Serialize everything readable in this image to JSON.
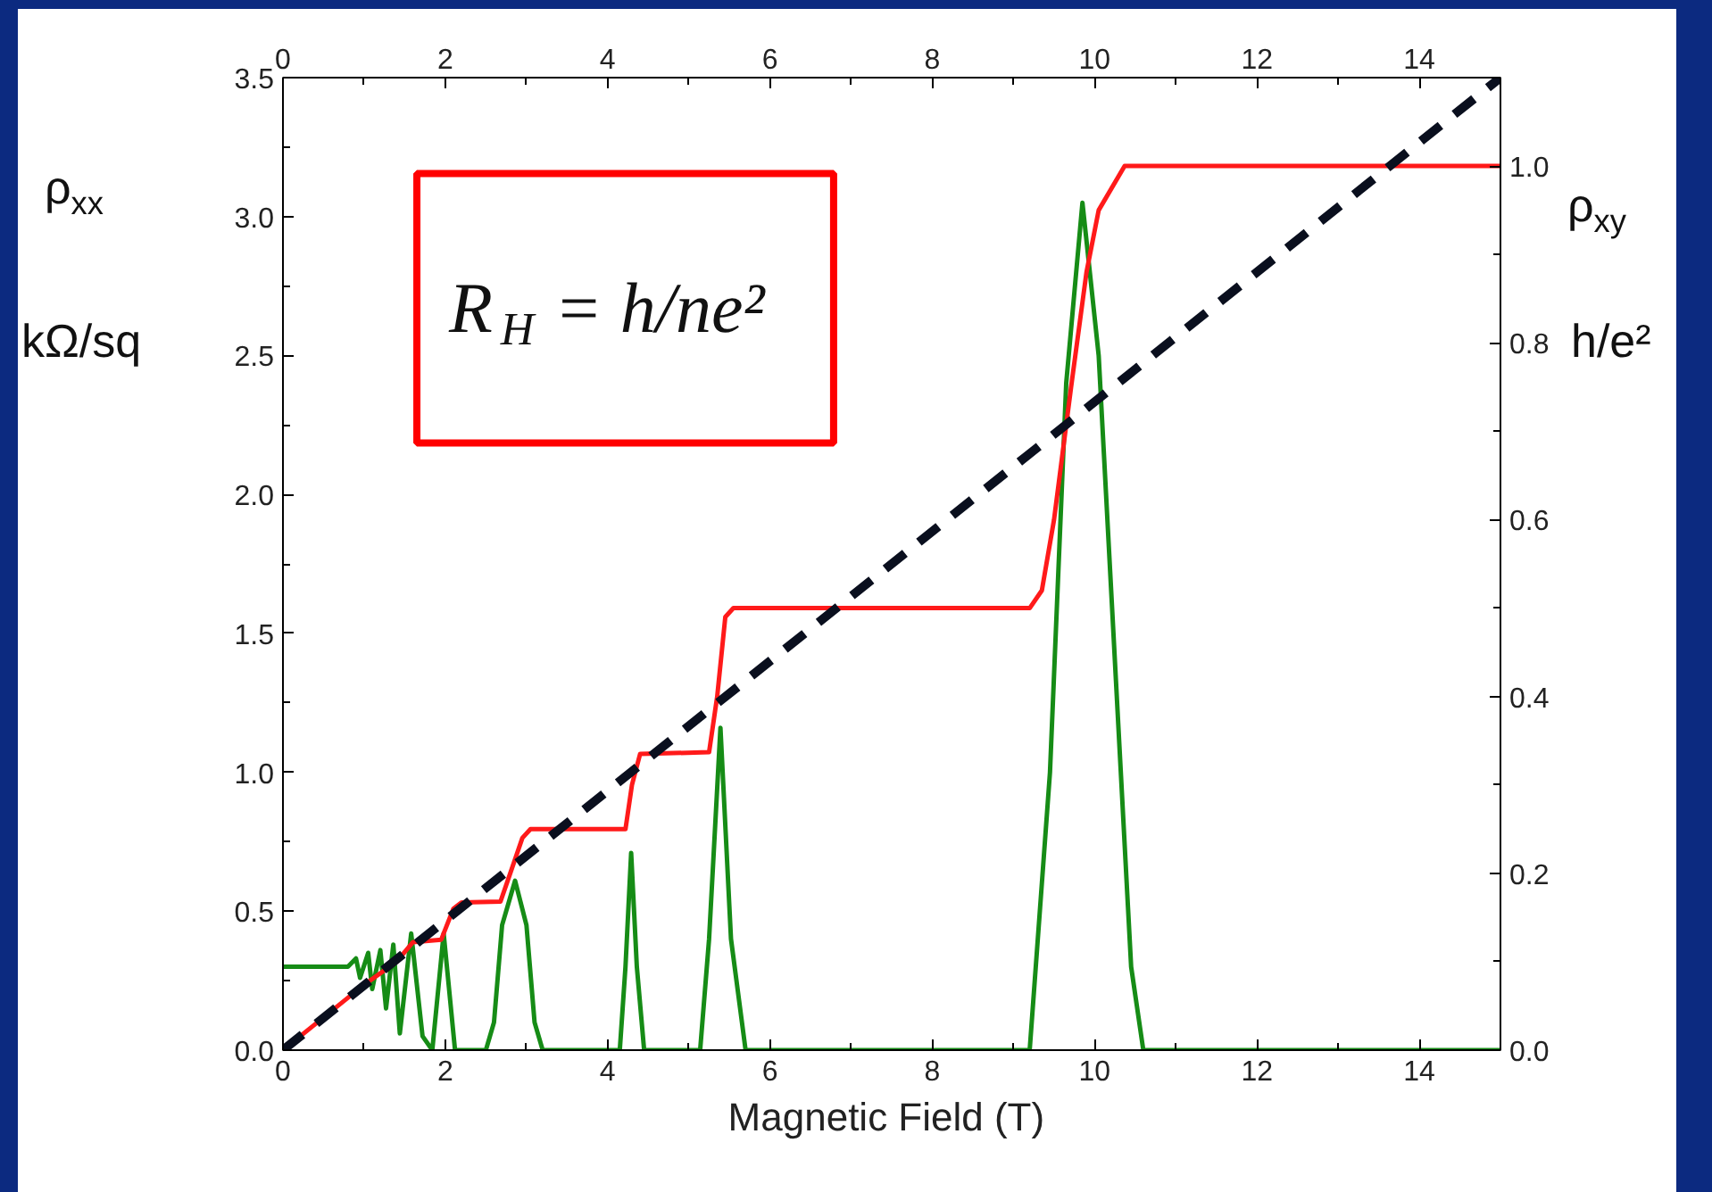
{
  "chart_data": {
    "type": "line",
    "xlabel": "Magnetic Field  (T)",
    "ylabel": "ρ$_{xx}$\nkΩ/sq",
    "y2label": "ρ$_{xy}$\nh/e²",
    "annotations": [
      "R$_{H}$ = h/ne²"
    ],
    "xlim": [
      0,
      15
    ],
    "xticks": [
      0,
      2,
      4,
      6,
      8,
      10,
      12,
      14
    ],
    "x2lim": [
      0,
      15
    ],
    "x2ticks": [
      0,
      2,
      4,
      6,
      8,
      10,
      12,
      14
    ],
    "ylim": [
      0,
      3.5
    ],
    "yticks": [
      {
        "value": 0,
        "label": "0.0"
      },
      {
        "value": 0.5,
        "label": "0.5"
      },
      {
        "value": 1,
        "label": "1.0"
      },
      {
        "value": 1.5,
        "label": "1.5"
      },
      {
        "value": 2,
        "label": "2.0"
      },
      {
        "value": 2.5,
        "label": "2.5"
      },
      {
        "value": 3,
        "label": "3.0"
      },
      {
        "value": 3.5,
        "label": "3.5"
      }
    ],
    "y2lim": [
      0,
      1.1
    ],
    "y2ticks": [
      {
        "value": 0,
        "label": "0.0"
      },
      {
        "value": 0.2,
        "label": "0.2"
      },
      {
        "value": 0.4,
        "label": "0.4"
      },
      {
        "value": 0.6,
        "label": "0.6"
      },
      {
        "value": 0.8,
        "label": "0.8"
      },
      {
        "value": 1,
        "label": "1.0"
      }
    ],
    "grid": false,
    "marker": "none",
    "line_style": "solid",
    "series": [
      {
        "color": "#168c16",
        "x": [
          0,
          0.3,
          0.6,
          0.8,
          0.9,
          0.95,
          1.05,
          1.1,
          1.2,
          1.27,
          1.36,
          1.44,
          1.58,
          1.72,
          1.84,
          1.98,
          2.12,
          2.5,
          2.6,
          2.7,
          2.86,
          3.0,
          3.1,
          3.2,
          4.15,
          4.22,
          4.29,
          4.36,
          4.45,
          5.14,
          5.25,
          5.39,
          5.52,
          5.7,
          9.2,
          9.45,
          9.65,
          9.85,
          10.05,
          10.25,
          10.45,
          10.6,
          15
        ],
        "values": [
          0.3,
          0.3,
          0.3,
          0.3,
          0.33,
          0.26,
          0.35,
          0.22,
          0.36,
          0.15,
          0.38,
          0.06,
          0.42,
          0.05,
          0.0,
          0.42,
          0.0,
          0.0,
          0.1,
          0.45,
          0.61,
          0.45,
          0.1,
          0.0,
          0.0,
          0.3,
          0.71,
          0.3,
          0.0,
          0.0,
          0.4,
          1.16,
          0.4,
          0.0,
          0.0,
          1.0,
          2.4,
          3.05,
          2.5,
          1.4,
          0.3,
          0.0,
          0.0
        ]
      },
      {
        "color": "#ff1a1a",
        "axis": "y2",
        "x": [
          0,
          0.5,
          1.0,
          1.4,
          1.6,
          1.95,
          2.1,
          2.2,
          2.68,
          2.8,
          2.95,
          3.05,
          4.22,
          4.3,
          4.4,
          5.25,
          5.35,
          5.45,
          5.55,
          9.2,
          9.35,
          9.5,
          9.71,
          9.9,
          10.05,
          10.37,
          15
        ],
        "values": [
          0,
          0.037,
          0.074,
          0.1,
          0.122,
          0.125,
          0.16,
          0.167,
          0.168,
          0.2,
          0.24,
          0.25,
          0.25,
          0.3,
          0.335,
          0.337,
          0.4,
          0.49,
          0.5,
          0.5,
          0.52,
          0.6,
          0.75,
          0.88,
          0.95,
          1.0,
          1.0
        ]
      },
      {
        "color": "#0a0f1e",
        "axis": "y2",
        "line_style": "dashed",
        "x": [
          0,
          15
        ],
        "values": [
          0,
          1.1
        ]
      }
    ]
  }
}
